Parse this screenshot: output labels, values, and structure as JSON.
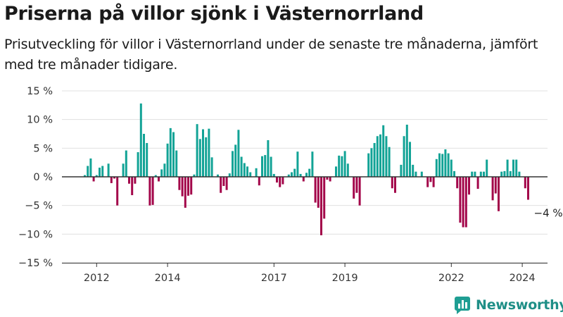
{
  "title": "Priserna på villor sjönk i Västernorrland",
  "subtitle": "Prisutveckling för villor i Västernorrland under de senaste tre månaderna, jämfört med tre månader tidigare.",
  "brand": {
    "name": "Newsworthy",
    "icon": "bar-chart-logo-icon",
    "color": "#1f9e93"
  },
  "colors": {
    "positive": "#12a396",
    "negative": "#a3064a",
    "zero_line": "#333333",
    "grid": "#e0e0e0"
  },
  "chart_data": {
    "type": "bar",
    "x_start": "2011-09",
    "x_step": "month",
    "y_unit": "%",
    "ylim": [
      -15,
      15
    ],
    "yticks": [
      15,
      10,
      5,
      0,
      -5,
      -10,
      -15
    ],
    "ytick_labels": [
      "15 %",
      "10 %",
      "5 %",
      "0 %",
      "−5 %",
      "−10 %",
      "−15 %"
    ],
    "xticks": [
      {
        "label": "2012",
        "date": "2012-01"
      },
      {
        "label": "2014",
        "date": "2014-01"
      },
      {
        "label": "2017",
        "date": "2017-01"
      },
      {
        "label": "2019",
        "date": "2019-01"
      },
      {
        "label": "2022",
        "date": "2022-01"
      },
      {
        "label": "2024",
        "date": "2024-01"
      }
    ],
    "grid": true,
    "annotation": "−4 %",
    "values": [
      0.3,
      1.9,
      3.2,
      -0.8,
      0.3,
      1.6,
      1.9,
      0,
      2.3,
      -1.1,
      -0.3,
      -5,
      0,
      2.3,
      4.6,
      -1.2,
      -3.2,
      -1.2,
      4.3,
      12.8,
      7.5,
      5.9,
      -5,
      -4.9,
      0.3,
      -0.8,
      1.3,
      2.3,
      5.8,
      8.5,
      7.8,
      4.6,
      -2.3,
      -3.4,
      -5.4,
      -3.3,
      -3.1,
      0.4,
      9.2,
      6.6,
      8.3,
      6.9,
      8.4,
      3.4,
      0,
      0.4,
      -2.8,
      -1.6,
      -2.3,
      0.6,
      4.5,
      5.6,
      8.2,
      3.5,
      2.4,
      1.8,
      0.8,
      0,
      1.5,
      -1.5,
      3.6,
      3.8,
      6.4,
      3.5,
      0.5,
      -1,
      -1.8,
      -1.3,
      0,
      0.4,
      0.8,
      1.4,
      4.4,
      0.5,
      -0.8,
      0.7,
      1.4,
      4.4,
      -4.5,
      -5.4,
      -10.2,
      -7.3,
      -0.5,
      -0.8,
      0,
      1.8,
      3.7,
      3.6,
      4.5,
      2.3,
      0,
      -3.8,
      -2.8,
      -5,
      0,
      0,
      4.1,
      5,
      5.9,
      7.1,
      7.4,
      9,
      7.1,
      5.2,
      -2,
      -2.8,
      0,
      2.1,
      7.1,
      9.1,
      6.1,
      2.1,
      0.9,
      0,
      0.9,
      0,
      -1.8,
      -0.9,
      -1.8,
      3.1,
      4.1,
      4,
      4.8,
      4.1,
      3,
      1,
      -2,
      -8,
      -8.8,
      -8.8,
      -3.1,
      0.9,
      0.9,
      -2.1,
      0.9,
      0.9,
      3,
      0,
      -4.1,
      -2.9,
      -6,
      0.9,
      1,
      3,
      1,
      3,
      3,
      0.9,
      0,
      -2,
      -4
    ]
  }
}
